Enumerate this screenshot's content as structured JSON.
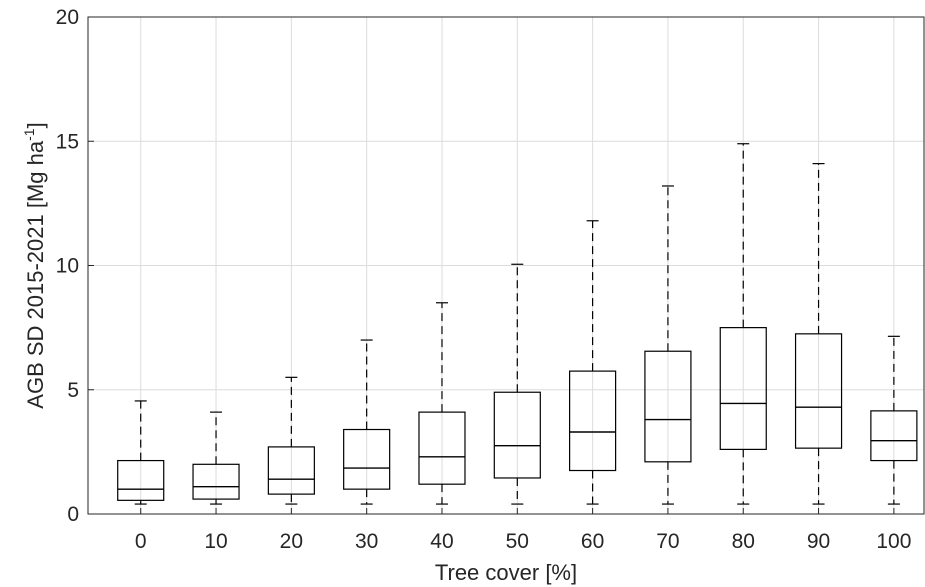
{
  "chart_data": {
    "type": "box",
    "x": [
      0,
      10,
      20,
      30,
      40,
      50,
      60,
      70,
      80,
      90,
      100
    ],
    "tick_labels_x": [
      "0",
      "10",
      "20",
      "30",
      "40",
      "50",
      "60",
      "70",
      "80",
      "90",
      "100"
    ],
    "tick_labels_y": [
      "0",
      "5",
      "10",
      "15",
      "20"
    ],
    "y_ticks": [
      0,
      5,
      10,
      15,
      20
    ],
    "xlim": [
      -7,
      104
    ],
    "ylim": [
      0,
      20
    ],
    "grid": true,
    "xlabel": "Tree cover [%]",
    "ylabel": {
      "main": "AGB SD 2015-2021 [Mg ha",
      "sup": "-1",
      "close": "]"
    },
    "boxes": [
      {
        "x": 0,
        "whisker_low": 0.4,
        "q1": 0.55,
        "median": 1.0,
        "q3": 2.15,
        "whisker_high": 4.55
      },
      {
        "x": 10,
        "whisker_low": 0.4,
        "q1": 0.6,
        "median": 1.1,
        "q3": 2.0,
        "whisker_high": 4.1
      },
      {
        "x": 20,
        "whisker_low": 0.4,
        "q1": 0.8,
        "median": 1.4,
        "q3": 2.7,
        "whisker_high": 5.5
      },
      {
        "x": 30,
        "whisker_low": 0.4,
        "q1": 1.0,
        "median": 1.85,
        "q3": 3.4,
        "whisker_high": 7.0
      },
      {
        "x": 40,
        "whisker_low": 0.4,
        "q1": 1.2,
        "median": 2.3,
        "q3": 4.1,
        "whisker_high": 8.5
      },
      {
        "x": 50,
        "whisker_low": 0.4,
        "q1": 1.45,
        "median": 2.75,
        "q3": 4.9,
        "whisker_high": 10.05
      },
      {
        "x": 60,
        "whisker_low": 0.4,
        "q1": 1.75,
        "median": 3.3,
        "q3": 5.75,
        "whisker_high": 11.8
      },
      {
        "x": 70,
        "whisker_low": 0.4,
        "q1": 2.1,
        "median": 3.8,
        "q3": 6.55,
        "whisker_high": 13.2
      },
      {
        "x": 80,
        "whisker_low": 0.4,
        "q1": 2.6,
        "median": 4.45,
        "q3": 7.5,
        "whisker_high": 14.9
      },
      {
        "x": 90,
        "whisker_low": 0.4,
        "q1": 2.65,
        "median": 4.3,
        "q3": 7.25,
        "whisker_high": 14.1
      },
      {
        "x": 100,
        "whisker_low": 0.4,
        "q1": 2.15,
        "median": 2.95,
        "q3": 4.15,
        "whisker_high": 7.15
      }
    ],
    "colors": {
      "box": "#000000",
      "grid": "#dcdcdc",
      "axis": "#262626",
      "background": "#ffffff"
    }
  }
}
